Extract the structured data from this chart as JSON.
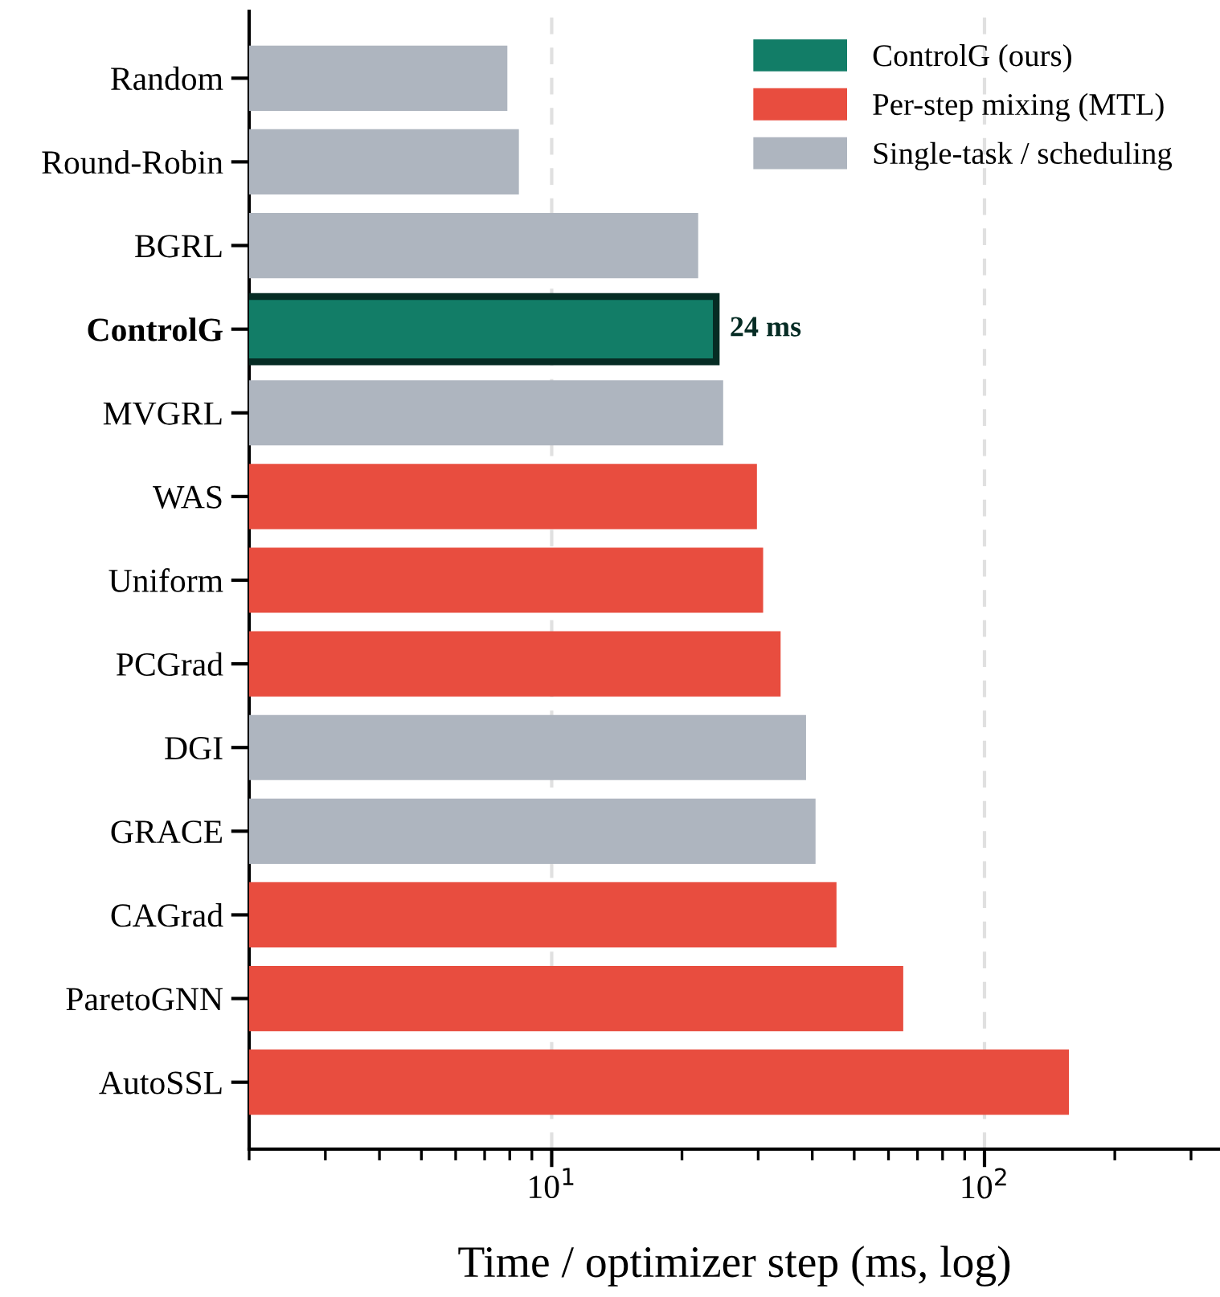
{
  "chart_data": {
    "type": "bar",
    "orientation": "horizontal",
    "log": "x",
    "xlabel": "Time / optimizer step (ms, log)",
    "categories": [
      "Random",
      "Round-Robin",
      "BGRL",
      "ControlG",
      "MVGRL",
      "WAS",
      "Uniform",
      "PCGrad",
      "DGI",
      "GRACE",
      "CAGrad",
      "ParetoGNN",
      "AutoSSL"
    ],
    "series": [
      {
        "name": "ControlG (ours)",
        "color": "#127d67",
        "values": [
          null,
          null,
          null,
          24,
          null,
          null,
          null,
          null,
          null,
          null,
          null,
          null,
          null
        ],
        "value_labels": [
          null,
          null,
          null,
          "24 ms",
          null,
          null,
          null,
          null,
          null,
          null,
          null,
          null,
          null
        ]
      },
      {
        "name": "Per-step mixing (MTL)",
        "color": "#e84d3f",
        "values": [
          null,
          null,
          null,
          null,
          null,
          29.8,
          30.8,
          33.8,
          null,
          null,
          45.5,
          64.9,
          156.7
        ]
      },
      {
        "name": "Single-task / scheduling",
        "color": "#aeb5bf",
        "values": [
          7.9,
          8.4,
          21.8,
          null,
          24.9,
          null,
          null,
          null,
          38.7,
          40.7,
          null,
          null,
          null
        ]
      }
    ],
    "xlim": [
      2,
      350
    ],
    "xticks": [
      {
        "value": 10,
        "label": "10$^{1}$"
      },
      {
        "value": 100,
        "label": "10$^{2}$"
      }
    ],
    "grid": "x",
    "legend": "top right"
  }
}
